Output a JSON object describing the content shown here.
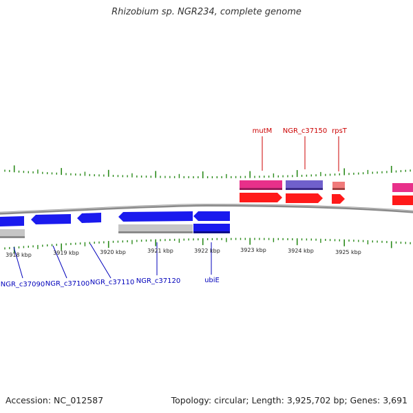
{
  "title": "Rhizobium sp. NGR234, complete genome",
  "footer": {
    "accession": "Accession: NC_012587",
    "stats": "Topology: circular; Length: 3,925,702 bp; Genes: 3,691"
  },
  "colors": {
    "backbone": "#8a8a8a",
    "tick": "#2a8a1a",
    "forward_gene": "#ff1a1a",
    "reverse_gene": "#1a1aee",
    "pink_feature": "#e8308a",
    "purple_feature": "#7060cc",
    "salmon_feature": "#f07a7a",
    "grey_feature": "#c6c6c6",
    "label_top": "#cc0000",
    "label_bottom": "#0000bb"
  },
  "ruler_labels": [
    "3918 kbp",
    "3919 kbp",
    "3920 kbp",
    "3921 kbp",
    "3922 kbp",
    "3923 kbp",
    "3924 kbp",
    "3925 kbp"
  ],
  "top_labels": [
    "mutM",
    "NGR_c37150",
    "rpsT"
  ],
  "bottom_labels": [
    "NGR_c37090",
    "NGR_c37100",
    "NGR_c37110",
    "NGR_c37120",
    "ubiE"
  ]
}
